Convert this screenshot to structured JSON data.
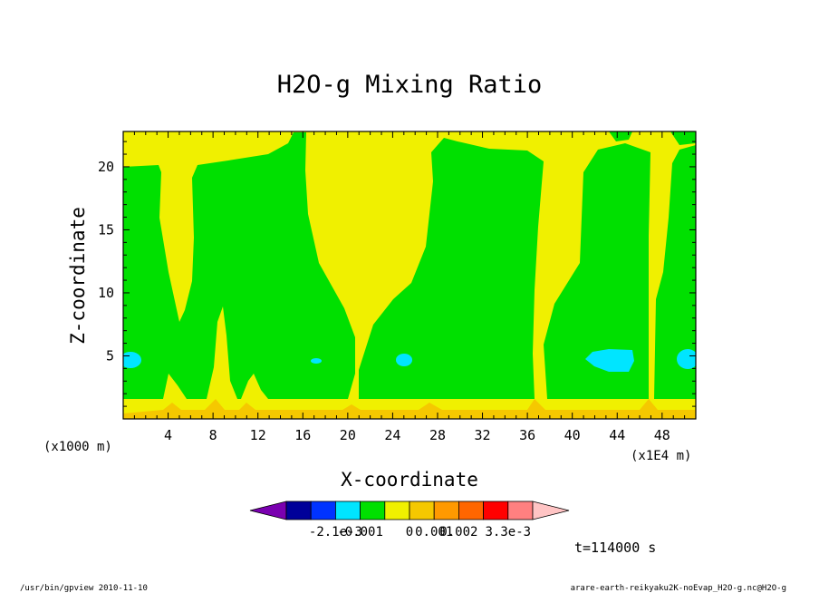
{
  "chart_data": {
    "type": "heatmap",
    "title": "H2O-g Mixing Ratio",
    "xlabel": "X-coordinate",
    "ylabel": "Z-coordinate",
    "x_unit_left": "(x1000 m)",
    "x_unit_right": "(x1E4 m)",
    "xlim": [
      0,
      51
    ],
    "ylim": [
      0,
      22.8
    ],
    "x_ticks": [
      4,
      8,
      12,
      16,
      20,
      24,
      28,
      32,
      36,
      40,
      44,
      48
    ],
    "y_ticks": [
      5,
      10,
      15,
      20
    ],
    "colorbar": {
      "levels": [
        "-2.1e-3",
        "-0.001",
        "0",
        "0.001",
        "0.002",
        "3.3e-3"
      ],
      "colors": [
        "#7a00b0",
        "#000099",
        "#0033ff",
        "#00e5ff",
        "#00e000",
        "#f0f000",
        "#f5c800",
        "#ff9900",
        "#ff6600",
        "#ff0000",
        "#ff8080",
        "#ffc4c4"
      ]
    },
    "regions": [
      {
        "name": "surface-layer",
        "level": "0.001 to 0.002",
        "x_range": [
          0,
          51
        ],
        "z_range": [
          0,
          1.5
        ]
      },
      {
        "name": "lower-layer",
        "level": "0 to 0.001",
        "x_range": [
          0,
          51
        ],
        "z_range": [
          1.5,
          3
        ]
      },
      {
        "name": "moist-column-1",
        "level": "-0.001 to 0",
        "x_range": [
          0,
          4
        ],
        "z_range": [
          1.5,
          21
        ]
      },
      {
        "name": "moist-column-2",
        "level": "-0.001 to 0",
        "x_range": [
          6,
          21
        ],
        "z_range": [
          1.5,
          22
        ]
      },
      {
        "name": "moist-column-3",
        "level": "-0.001 to 0",
        "x_range": [
          21,
          37
        ],
        "z_range": [
          1.5,
          22.5
        ]
      },
      {
        "name": "moist-column-4",
        "level": "-0.001 to 0",
        "x_range": [
          38,
          47
        ],
        "z_range": [
          1.5,
          21
        ]
      },
      {
        "name": "moist-column-5",
        "level": "-0.001 to 0",
        "x_range": [
          48,
          51
        ],
        "z_range": [
          1.5,
          21
        ]
      },
      {
        "name": "dry-pocket-1",
        "level": "-0.0021 to -0.001",
        "x_range": [
          0,
          1.5
        ],
        "z_range": [
          4.3,
          5.5
        ]
      },
      {
        "name": "dry-pocket-2",
        "level": "-0.0021 to -0.001",
        "x_range": [
          16.5,
          17.5
        ],
        "z_range": [
          4.5,
          5
        ]
      },
      {
        "name": "dry-pocket-3",
        "level": "-0.0021 to -0.001",
        "x_range": [
          24.5,
          26
        ],
        "z_range": [
          4.3,
          5.3
        ]
      },
      {
        "name": "dry-pocket-4",
        "level": "-0.0021 to -0.001",
        "x_range": [
          41,
          45
        ],
        "z_range": [
          4,
          5.5
        ]
      },
      {
        "name": "dry-pocket-5",
        "level": "-0.0021 to -0.001",
        "x_range": [
          49.5,
          51
        ],
        "z_range": [
          4.2,
          5.8
        ]
      }
    ]
  },
  "time_label": "t=114000 s",
  "footer": {
    "left": "/usr/bin/gpview  2010-11-10",
    "right": "arare-earth-reikyaku2K-noEvap_H2O-g.nc@H2O-g"
  }
}
